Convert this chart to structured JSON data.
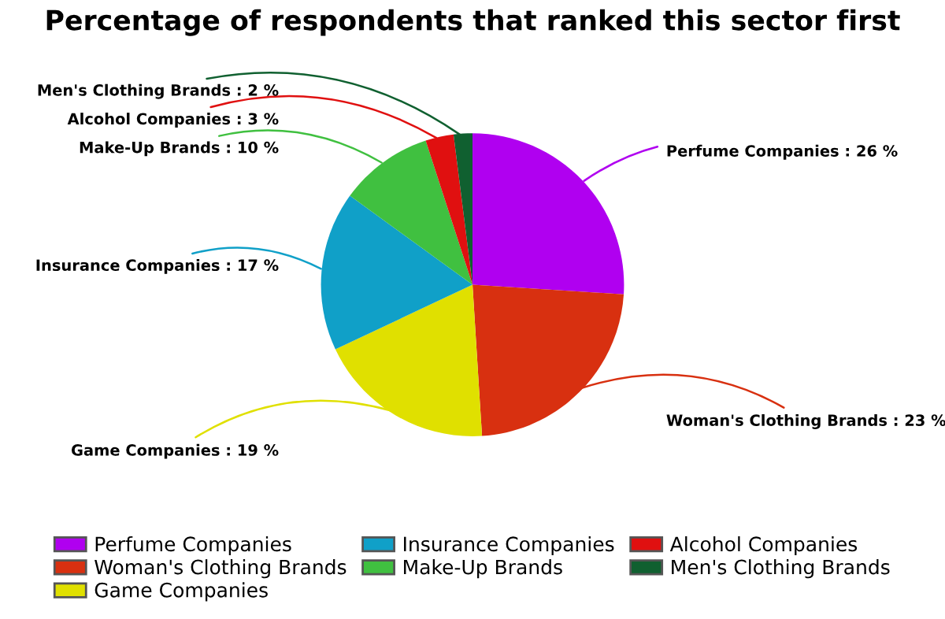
{
  "chart_data": {
    "type": "pie",
    "title": "Percentage of respondents that ranked this sector first",
    "categories": [
      "Perfume Companies",
      "Woman's Clothing Brands",
      "Game Companies",
      "Insurance Companies",
      "Make-Up Brands",
      "Alcohol Companies",
      "Men's Clothing Brands"
    ],
    "values": [
      26,
      23,
      19,
      17,
      10,
      3,
      2
    ],
    "value_labels": [
      "Perfume Companies : 26 %",
      "Woman's Clothing Brands : 23 %",
      "Game Companies : 19 %",
      "Insurance Companies : 17 %",
      "Make-Up Brands : 10 %",
      "Alcohol Companies : 3 %",
      "Men's Clothing Brands : 2 %"
    ],
    "colors": [
      "#b000f0",
      "#d83010",
      "#e0e000",
      "#10a0c8",
      "#40c040",
      "#e01010",
      "#106030"
    ],
    "legend": "bottom"
  }
}
